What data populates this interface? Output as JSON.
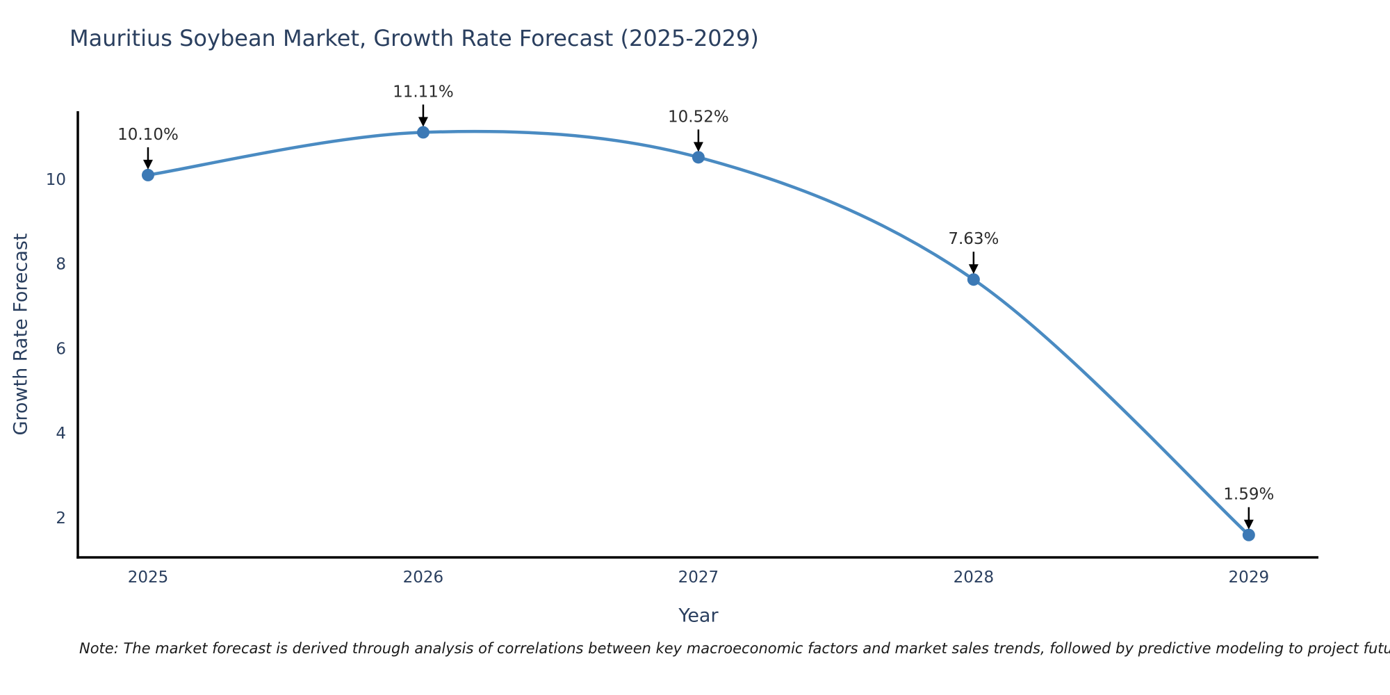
{
  "title": "Mauritius Soybean Market, Growth Rate Forecast (2025-2029)",
  "note": "Note: The market forecast is derived through analysis of correlations between key macroeconomic factors and market sales trends, followed by predictive modeling to project future sales",
  "chart_data": {
    "type": "line",
    "title": "Mauritius Soybean Market, Growth Rate Forecast (2025-2029)",
    "xlabel": "Year",
    "ylabel": "Growth Rate Forecast",
    "x": [
      2025,
      2026,
      2027,
      2028,
      2029
    ],
    "series": [
      {
        "name": "Growth Rate Forecast",
        "values": [
          10.1,
          11.11,
          10.52,
          7.63,
          1.59
        ],
        "point_labels": [
          "10.10%",
          "11.11%",
          "10.52%",
          "7.63%",
          "1.59%"
        ]
      }
    ],
    "line_shape": "spline",
    "grid": false,
    "legend": "none",
    "xticks": [
      "2025",
      "2026",
      "2027",
      "2028",
      "2029"
    ],
    "yticks": [
      2,
      4,
      6,
      8,
      10
    ],
    "xlim": [
      2024.745,
      2029.253
    ],
    "ylim": [
      1.06,
      11.61
    ],
    "colors": {
      "line": "#4a8bc2",
      "marker": "#3c79b5",
      "annotation_text": "#2b2b2b",
      "arrow": "#000000",
      "axis_line": "#000000",
      "axis_text": "#2a3f5f",
      "title_text": "#2a3f5f",
      "background": "#ffffff"
    }
  }
}
